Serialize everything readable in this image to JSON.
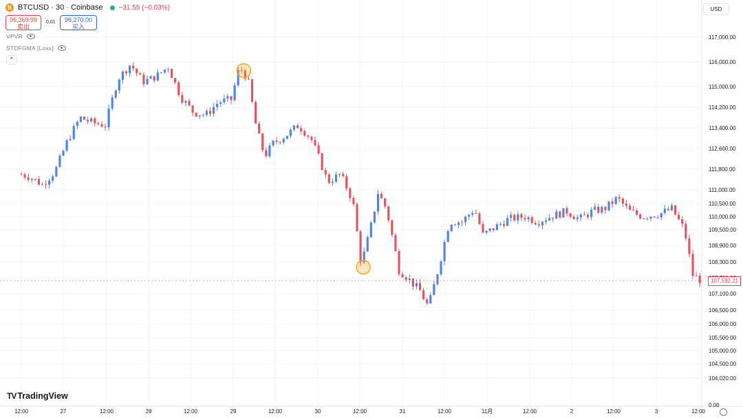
{
  "header": {
    "title": "BTCUSD · 30 · Coinbase",
    "change": "−31.55 (−0.03%)",
    "btc_icon": "B"
  },
  "trade": {
    "sell_price": "96,269.99",
    "sell_label": "卖出",
    "spread": "0.01",
    "buy_price": "96,270.00",
    "buy_label": "买入"
  },
  "indicators": [
    "VPVR",
    "STDFGMA [Loxx]"
  ],
  "collapse_glyph": "^",
  "currency": "USD",
  "last_price": "107,592.21",
  "brand": {
    "mark": "TV",
    "name": "TradingView"
  },
  "colors": {
    "up": "#4f86e6",
    "down": "#e0555f",
    "marker": "#f5a623",
    "grid": "#f0f3fa"
  },
  "chart_data": {
    "type": "candlestick",
    "y_axis_ticks": [
      117000,
      116000,
      115000,
      114200,
      113400,
      112600,
      111800,
      111000,
      110500,
      110000,
      109500,
      108900,
      108300,
      107700,
      107100,
      106500,
      106000,
      105500,
      105000,
      104500,
      104020,
      0
    ],
    "y_axis_tick_labels": [
      "117,000.00",
      "116,000.00",
      "115,000.00",
      "114,200.00",
      "113,400.00",
      "112,600.00",
      "111,800.00",
      "111,000.00",
      "110,500.00",
      "110,000.00",
      "109,500.00",
      "108,900.00",
      "108,300.00",
      "107,700.00",
      "107,100.00",
      "106,500.00",
      "106,000.00",
      "105,500.00",
      "105,000.00",
      "104,500.00",
      "104,020.00",
      "0.00"
    ],
    "x_axis_ticks": [
      "12:00",
      "27",
      "12:00",
      "28",
      "12:00",
      "29",
      "12:00",
      "30",
      "12:00",
      "31",
      "12:00",
      "11月",
      "12:00",
      "2",
      "12:00",
      "3",
      "12:00"
    ],
    "close_path": [
      [
        0.0,
        111600
      ],
      [
        0.2,
        111500
      ],
      [
        0.5,
        111200
      ],
      [
        0.8,
        111700
      ],
      [
        1.1,
        112900
      ],
      [
        1.4,
        113800
      ],
      [
        1.7,
        113600
      ],
      [
        2.0,
        113500
      ],
      [
        2.3,
        115300
      ],
      [
        2.6,
        115900
      ],
      [
        2.9,
        115200
      ],
      [
        3.2,
        115400
      ],
      [
        3.5,
        115800
      ],
      [
        3.8,
        114600
      ],
      [
        4.1,
        114000
      ],
      [
        4.4,
        113900
      ],
      [
        4.7,
        114400
      ],
      [
        5.0,
        114500
      ],
      [
        5.2,
        115800
      ],
      [
        5.4,
        115300
      ],
      [
        5.6,
        113400
      ],
      [
        5.8,
        112300
      ],
      [
        6.0,
        112800
      ],
      [
        6.3,
        113100
      ],
      [
        6.6,
        113500
      ],
      [
        6.9,
        113000
      ],
      [
        7.1,
        112200
      ],
      [
        7.3,
        111300
      ],
      [
        7.6,
        111600
      ],
      [
        7.9,
        110600
      ],
      [
        8.1,
        108200
      ],
      [
        8.3,
        109400
      ],
      [
        8.5,
        110900
      ],
      [
        8.7,
        110300
      ],
      [
        9.0,
        108000
      ],
      [
        9.2,
        107700
      ],
      [
        9.5,
        107200
      ],
      [
        9.7,
        106600
      ],
      [
        9.9,
        107800
      ],
      [
        10.2,
        109800
      ],
      [
        10.5,
        109800
      ],
      [
        10.8,
        110300
      ],
      [
        11.0,
        109300
      ],
      [
        11.3,
        109600
      ],
      [
        11.6,
        109900
      ],
      [
        12.0,
        110000
      ],
      [
        12.3,
        109800
      ],
      [
        12.6,
        110000
      ],
      [
        13.0,
        110200
      ],
      [
        13.3,
        109900
      ],
      [
        13.6,
        110200
      ],
      [
        13.9,
        110300
      ],
      [
        14.2,
        110700
      ],
      [
        14.5,
        110200
      ],
      [
        14.8,
        110000
      ],
      [
        15.2,
        110100
      ],
      [
        15.5,
        110300
      ],
      [
        15.8,
        109500
      ],
      [
        16.0,
        107800
      ],
      [
        16.2,
        107592
      ]
    ],
    "markers": [
      {
        "x": 5.3,
        "y": 115650,
        "label": ""
      },
      {
        "x": 8.15,
        "y": 108100,
        "label": ""
      }
    ]
  }
}
